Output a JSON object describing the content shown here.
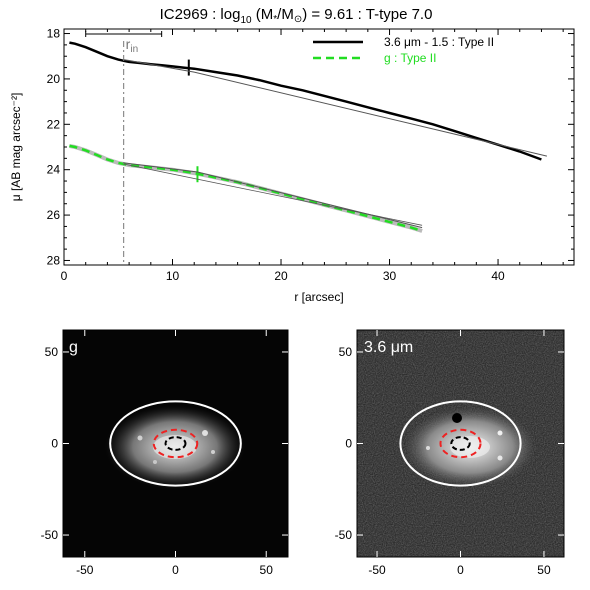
{
  "title": {
    "pre": "IC2969 : log",
    "sub": "10",
    "mid": " (M",
    "star": "*",
    "slash": "/M",
    "sun": "⊙",
    "post": ") = 9.61 : T-type 7.0"
  },
  "colors": {
    "ch1": "#000000",
    "g": "#22dd22",
    "model": "#555555",
    "ellipse_outer": "#ffffff",
    "ellipse_inner": "#ee2222",
    "ellipse_core": "#000000",
    "rin_line": "#777777"
  },
  "chart_data": [
    {
      "type": "line",
      "panel": "profile",
      "xlabel": "r [arcsec]",
      "ylabel": "μ [AB mag arcsec⁻²]",
      "xlim": [
        0,
        47
      ],
      "ylim": [
        28.2,
        17.8
      ],
      "y_reversed": true,
      "x_ticks": [
        0,
        10,
        20,
        30,
        40
      ],
      "y_ticks": [
        18,
        20,
        22,
        24,
        26,
        28
      ],
      "r_in": 5.5,
      "r_in_label": "r",
      "r_in_label_sub": "in",
      "r_in_bar": [
        2,
        9
      ],
      "legend": {
        "placement": "top-right",
        "entries": [
          "3.6 μm - 1.5 : Type II",
          "g : Type II"
        ]
      },
      "series": [
        {
          "name": "3.6 μm - 1.5 : Type II",
          "style": "solid",
          "x": [
            0.5,
            1,
            2,
            3,
            4,
            5,
            5.5,
            6,
            7,
            8,
            9,
            10,
            11,
            12,
            14,
            16,
            18,
            20,
            22,
            24,
            26,
            28,
            30,
            32,
            34,
            36,
            38,
            40,
            42,
            44
          ],
          "y": [
            18.4,
            18.45,
            18.6,
            18.8,
            19.0,
            19.15,
            19.2,
            19.25,
            19.3,
            19.35,
            19.4,
            19.45,
            19.5,
            19.55,
            19.7,
            19.85,
            20.05,
            20.3,
            20.5,
            20.75,
            21.0,
            21.25,
            21.5,
            21.75,
            22.0,
            22.3,
            22.6,
            22.9,
            23.2,
            23.55
          ],
          "break_x": 11.5,
          "break_y": 19.5
        },
        {
          "name": "3.6 μm model",
          "style": "model",
          "x": [
            5.5,
            12,
            44.5
          ],
          "y": [
            19.15,
            19.7,
            23.4
          ]
        },
        {
          "name": "g : Type II",
          "style": "dashed",
          "x": [
            0.5,
            1,
            2,
            3,
            4,
            5,
            5.5,
            6,
            8,
            10,
            12,
            14,
            16,
            18,
            20,
            22,
            24,
            26,
            28,
            30,
            32,
            33
          ],
          "y": [
            22.95,
            23.0,
            23.15,
            23.35,
            23.55,
            23.7,
            23.75,
            23.8,
            23.9,
            24.0,
            24.15,
            24.35,
            24.55,
            24.8,
            25.05,
            25.3,
            25.55,
            25.8,
            26.05,
            26.3,
            26.55,
            26.7
          ],
          "break_x": 12.3,
          "break_y": 24.2
        },
        {
          "name": "g model",
          "style": "model",
          "x": [
            5.5,
            12.3,
            33
          ],
          "y": [
            23.7,
            24.1,
            26.55
          ]
        },
        {
          "name": "3.6 μm inner model",
          "style": "model-thin",
          "x": [
            5.5,
            33
          ],
          "y": [
            23.75,
            26.45
          ]
        }
      ]
    },
    {
      "type": "image",
      "panel": "g",
      "label": "g",
      "xlim": [
        -62,
        62
      ],
      "ylim": [
        -62,
        62
      ],
      "x_ticks": [
        -50,
        0,
        50
      ],
      "y_ticks": [
        -50,
        0,
        50
      ],
      "outer_ellipse": {
        "a": 36,
        "b": 23
      },
      "inner_ellipse": {
        "a": 12,
        "b": 7.5
      },
      "core_ellipse": {
        "a": 5.5,
        "b": 3.5
      },
      "background": "dark"
    },
    {
      "type": "image",
      "panel": "ch1",
      "label": "3.6 μm",
      "xlim": [
        -62,
        62
      ],
      "ylim": [
        -62,
        62
      ],
      "x_ticks": [
        -50,
        0,
        50
      ],
      "y_ticks": [
        -50,
        0,
        50
      ],
      "outer_ellipse": {
        "a": 36,
        "b": 23
      },
      "inner_ellipse": {
        "a": 12,
        "b": 7.5
      },
      "core_ellipse": {
        "a": 5.5,
        "b": 3.5
      },
      "background": "noisy"
    }
  ]
}
